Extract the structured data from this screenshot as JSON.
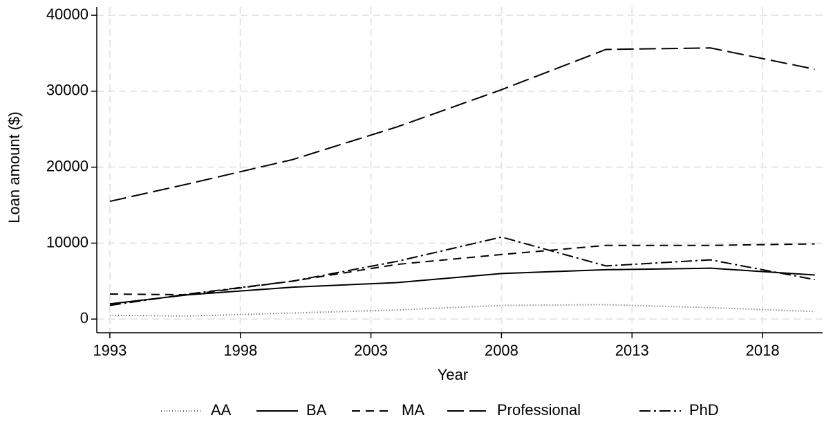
{
  "chart_data": {
    "type": "line",
    "x_label": "Year",
    "y_label": "Loan amount ($)",
    "x": [
      1993,
      1996,
      2000,
      2004,
      2008,
      2012,
      2016,
      2020
    ],
    "xlim": [
      1992.5,
      2020.3
    ],
    "xticks": [
      1993,
      1998,
      2003,
      2008,
      2013,
      2018
    ],
    "ylim": [
      -1800,
      41100
    ],
    "yticks": [
      0,
      10000,
      20000,
      30000,
      40000
    ],
    "grid": true,
    "legend": "bottom",
    "series": [
      {
        "name": "AA",
        "color": "#555555",
        "dash": "1,3",
        "values": [
          500,
          400,
          800,
          1200,
          1800,
          1900,
          1500,
          1000
        ]
      },
      {
        "name": "BA",
        "color": "#000000",
        "dash": "none",
        "values": [
          2000,
          3200,
          4200,
          4800,
          6000,
          6500,
          6700,
          5800
        ]
      },
      {
        "name": "MA",
        "color": "#000000",
        "dash": "12,8",
        "values": [
          3300,
          3200,
          5000,
          7200,
          8500,
          9700,
          9700,
          9900
        ]
      },
      {
        "name": "Professional",
        "color": "#000000",
        "dash": "24,8",
        "values": [
          15500,
          17800,
          21000,
          25300,
          30200,
          35500,
          35700,
          32900
        ]
      },
      {
        "name": "PhD",
        "color": "#000000",
        "dash": "16,5,3,5",
        "values": [
          1800,
          3300,
          5000,
          7600,
          10800,
          7000,
          7800,
          5200
        ]
      }
    ]
  }
}
